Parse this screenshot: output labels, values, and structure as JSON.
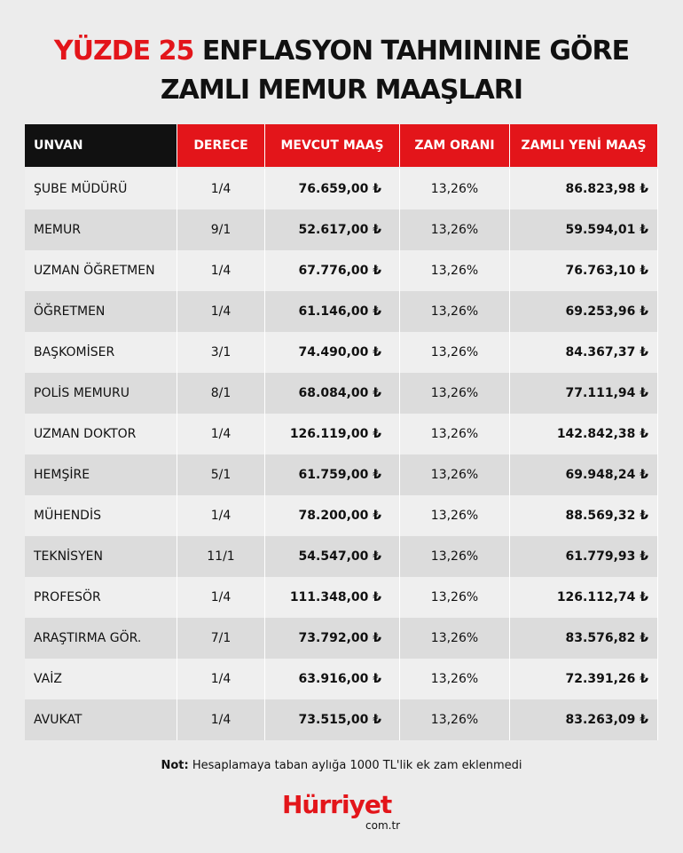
{
  "header": {
    "title_highlight": "YÜZDE 25",
    "title_rest": "ENFLASYON TAHMININE GÖRE",
    "title_line2": "ZAMLI MEMUR MAAŞLARI"
  },
  "table": {
    "columns": [
      "UNVAN",
      "DERECE",
      "MEVCUT MAAŞ",
      "ZAM ORANI",
      "ZAMLI YENİ MAAŞ"
    ],
    "rows": [
      [
        "ŞUBE MÜDÜRÜ",
        "1/4",
        "76.659,00 ₺",
        "13,26%",
        "86.823,98 ₺"
      ],
      [
        "MEMUR",
        "9/1",
        "52.617,00 ₺",
        "13,26%",
        "59.594,01 ₺"
      ],
      [
        "UZMAN ÖĞRETMEN",
        "1/4",
        "67.776,00 ₺",
        "13,26%",
        "76.763,10 ₺"
      ],
      [
        "ÖĞRETMEN",
        "1/4",
        "61.146,00 ₺",
        "13,26%",
        "69.253,96 ₺"
      ],
      [
        "BAŞKOMİSER",
        "3/1",
        "74.490,00 ₺",
        "13,26%",
        "84.367,37 ₺"
      ],
      [
        "POLİS MEMURU",
        "8/1",
        "68.084,00 ₺",
        "13,26%",
        "77.111,94 ₺"
      ],
      [
        "UZMAN DOKTOR",
        "1/4",
        "126.119,00 ₺",
        "13,26%",
        "142.842,38 ₺"
      ],
      [
        "HEMŞİRE",
        "5/1",
        "61.759,00 ₺",
        "13,26%",
        "69.948,24 ₺"
      ],
      [
        "MÜHENDİS",
        "1/4",
        "78.200,00 ₺",
        "13,26%",
        "88.569,32 ₺"
      ],
      [
        "TEKNİSYEN",
        "11/1",
        "54.547,00 ₺",
        "13,26%",
        "61.779,93 ₺"
      ],
      [
        "PROFESÖR",
        "1/4",
        "111.348,00 ₺",
        "13,26%",
        "126.112,74 ₺"
      ],
      [
        "ARAŞTIRMA GÖR.",
        "7/1",
        "73.792,00 ₺",
        "13,26%",
        "83.576,82 ₺"
      ],
      [
        "VAİZ",
        "1/4",
        "63.916,00 ₺",
        "13,26%",
        "72.391,26 ₺"
      ],
      [
        "AVUKAT",
        "1/4",
        "73.515,00 ₺",
        "13,26%",
        "83.263,09 ₺"
      ]
    ]
  },
  "note": {
    "label": "Not:",
    "text": "Hesaplamaya taban aylığa 1000 TL'lik ek zam eklenmedi"
  },
  "logo": {
    "name": "Hürriyet",
    "domain": "com.tr"
  }
}
